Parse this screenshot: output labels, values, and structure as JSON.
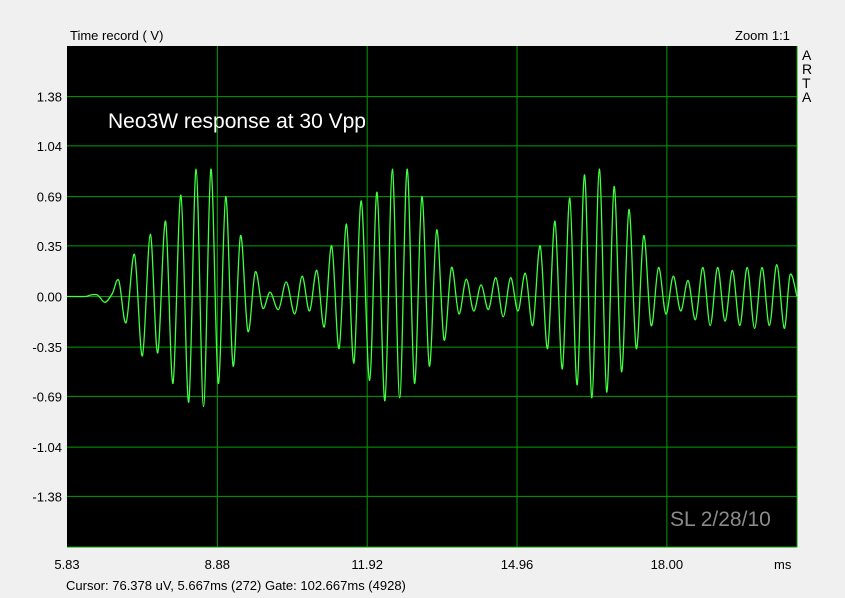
{
  "window": {
    "top_left_label": "Time record ( V)",
    "zoom_label": "Zoom 1:1",
    "brand_letters": [
      "A",
      "R",
      "T",
      "A"
    ],
    "status_bar": "Cursor: 76.378 uV, 5.667ms (272)  Gate: 102.667ms (4928)"
  },
  "colors": {
    "background": "#000000",
    "grid": "#00a000",
    "trace": "#40ff40",
    "title": "#ffffff",
    "signature": "#8a8a8a"
  },
  "chart_data": {
    "type": "line",
    "title": "Neo3W response at 30 Vpp",
    "annotation": "SL 2/28/10",
    "xlabel": "ms",
    "ylabel": "Time record ( V)",
    "xlim": [
      5.83,
      20.64
    ],
    "ylim": [
      -1.73,
      1.73
    ],
    "grid": true,
    "x_ticks": [
      5.83,
      8.88,
      11.92,
      14.96,
      18.0
    ],
    "x_tick_labels": [
      "5.83",
      "8.88",
      "11.92",
      "14.96",
      "18.00"
    ],
    "y_ticks": [
      1.38,
      1.04,
      0.69,
      0.35,
      0.0,
      -0.35,
      -0.69,
      -1.04,
      -1.38
    ],
    "y_tick_labels": [
      "1.38",
      "1.04",
      "0.69",
      "0.35",
      "0.00",
      "-0.35",
      "-0.69",
      "-1.04",
      "-1.38"
    ],
    "series": [
      {
        "values": [
          [
            5.83,
            0.0
          ],
          [
            6.2,
            0.0
          ],
          [
            6.3,
            0.01
          ],
          [
            6.45,
            0.01
          ],
          [
            6.6,
            -0.04
          ],
          [
            6.75,
            0.02
          ],
          [
            6.88,
            0.11
          ],
          [
            7.03,
            -0.18
          ],
          [
            7.2,
            0.29
          ],
          [
            7.36,
            -0.41
          ],
          [
            7.52,
            0.43
          ],
          [
            7.67,
            -0.39
          ],
          [
            7.83,
            0.52
          ],
          [
            7.98,
            -0.6
          ],
          [
            8.14,
            0.7
          ],
          [
            8.3,
            -0.73
          ],
          [
            8.45,
            0.88
          ],
          [
            8.6,
            -0.76
          ],
          [
            8.75,
            0.88
          ],
          [
            8.9,
            -0.6
          ],
          [
            9.05,
            0.69
          ],
          [
            9.2,
            -0.48
          ],
          [
            9.35,
            0.42
          ],
          [
            9.5,
            -0.24
          ],
          [
            9.65,
            0.17
          ],
          [
            9.8,
            -0.08
          ],
          [
            9.95,
            0.03
          ],
          [
            10.12,
            -0.09
          ],
          [
            10.28,
            0.1
          ],
          [
            10.45,
            -0.12
          ],
          [
            10.6,
            0.14
          ],
          [
            10.75,
            -0.1
          ],
          [
            10.9,
            0.18
          ],
          [
            11.05,
            -0.21
          ],
          [
            11.2,
            0.35
          ],
          [
            11.35,
            -0.36
          ],
          [
            11.5,
            0.5
          ],
          [
            11.65,
            -0.46
          ],
          [
            11.8,
            0.66
          ],
          [
            11.97,
            -0.58
          ],
          [
            12.12,
            0.72
          ],
          [
            12.28,
            -0.72
          ],
          [
            12.43,
            0.88
          ],
          [
            12.58,
            -0.7
          ],
          [
            12.73,
            0.88
          ],
          [
            12.88,
            -0.6
          ],
          [
            13.03,
            0.69
          ],
          [
            13.18,
            -0.48
          ],
          [
            13.33,
            0.46
          ],
          [
            13.48,
            -0.3
          ],
          [
            13.63,
            0.2
          ],
          [
            13.78,
            -0.12
          ],
          [
            13.93,
            0.12
          ],
          [
            14.08,
            -0.1
          ],
          [
            14.23,
            0.08
          ],
          [
            14.38,
            -0.09
          ],
          [
            14.53,
            0.13
          ],
          [
            14.68,
            -0.14
          ],
          [
            14.83,
            0.13
          ],
          [
            14.98,
            -0.1
          ],
          [
            15.13,
            0.16
          ],
          [
            15.28,
            -0.2
          ],
          [
            15.43,
            0.35
          ],
          [
            15.58,
            -0.36
          ],
          [
            15.73,
            0.52
          ],
          [
            15.88,
            -0.5
          ],
          [
            16.03,
            0.68
          ],
          [
            16.18,
            -0.61
          ],
          [
            16.33,
            0.84
          ],
          [
            16.48,
            -0.7
          ],
          [
            16.63,
            0.88
          ],
          [
            16.78,
            -0.66
          ],
          [
            16.93,
            0.76
          ],
          [
            17.08,
            -0.52
          ],
          [
            17.23,
            0.6
          ],
          [
            17.38,
            -0.36
          ],
          [
            17.53,
            0.42
          ],
          [
            17.68,
            -0.2
          ],
          [
            17.83,
            0.2
          ],
          [
            17.98,
            -0.12
          ],
          [
            18.13,
            0.14
          ],
          [
            18.28,
            -0.1
          ],
          [
            18.43,
            0.11
          ],
          [
            18.58,
            -0.16
          ],
          [
            18.73,
            0.2
          ],
          [
            18.88,
            -0.2
          ],
          [
            19.03,
            0.2
          ],
          [
            19.18,
            -0.17
          ],
          [
            19.33,
            0.18
          ],
          [
            19.48,
            -0.2
          ],
          [
            19.63,
            0.2
          ],
          [
            19.78,
            -0.22
          ],
          [
            19.93,
            0.2
          ],
          [
            20.08,
            -0.2
          ],
          [
            20.23,
            0.22
          ],
          [
            20.38,
            -0.22
          ],
          [
            20.5,
            0.15
          ],
          [
            20.64,
            0.0
          ]
        ]
      }
    ]
  }
}
